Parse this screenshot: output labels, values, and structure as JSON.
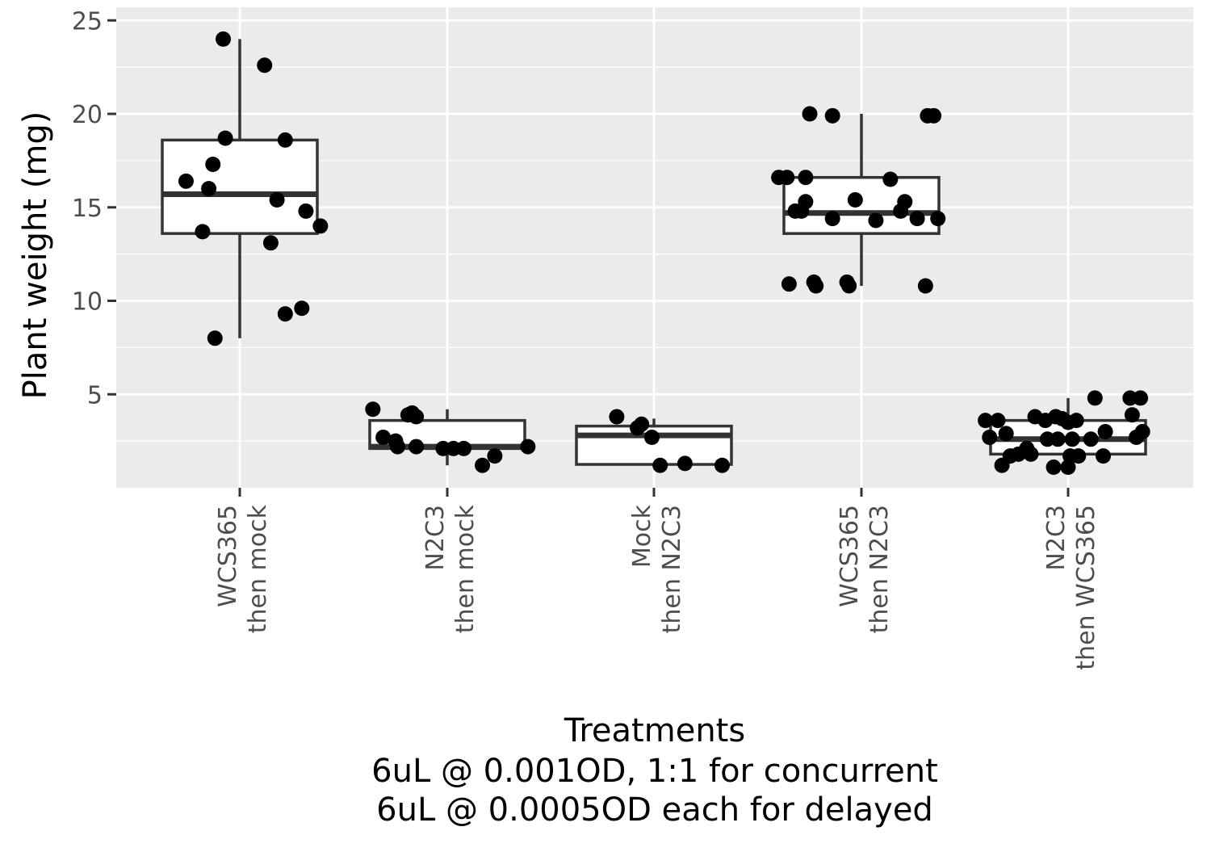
{
  "chart_data": {
    "type": "boxplot",
    "title": "",
    "xlabel_lines": [
      "Treatments",
      "6uL @ 0.001OD, 1:1 for concurrent",
      "6uL @ 0.0005OD each for delayed"
    ],
    "ylabel": "Plant weight (mg)",
    "ylim": [
      0,
      25
    ],
    "y_ticks": [
      5,
      10,
      15,
      20,
      25
    ],
    "grid": true,
    "background": "#ebebeb",
    "categories": [
      {
        "line1": "WCS365",
        "line2": "then mock"
      },
      {
        "line1": "N2C3",
        "line2": "then mock"
      },
      {
        "line1": "Mock",
        "line2": "then N2C3"
      },
      {
        "line1": "WCS365",
        "line2": "then N2C3"
      },
      {
        "line1": "N2C3",
        "line2": "then WCS365"
      }
    ],
    "boxes": [
      {
        "q1": 13.6,
        "median": 15.7,
        "q3": 18.6,
        "whisker_low": 8.0,
        "whisker_high": 24.0
      },
      {
        "q1": 2.1,
        "median": 2.2,
        "q3": 3.6,
        "whisker_low": 1.2,
        "whisker_high": 4.2
      },
      {
        "q1": 1.25,
        "median": 2.8,
        "q3": 3.3,
        "whisker_low": 1.25,
        "whisker_high": 3.7
      },
      {
        "q1": 13.6,
        "median": 14.7,
        "q3": 16.6,
        "whisker_low": 10.8,
        "whisker_high": 20.0
      },
      {
        "q1": 1.8,
        "median": 2.6,
        "q3": 3.6,
        "whisker_low": 1.1,
        "whisker_high": 4.8
      }
    ],
    "points": [
      [
        {
          "dx": -0.08,
          "y": 24.0
        },
        {
          "dx": 0.12,
          "y": 22.6
        },
        {
          "dx": -0.07,
          "y": 18.7
        },
        {
          "dx": 0.22,
          "y": 18.6
        },
        {
          "dx": -0.13,
          "y": 17.3
        },
        {
          "dx": -0.26,
          "y": 16.4
        },
        {
          "dx": -0.15,
          "y": 16.0
        },
        {
          "dx": 0.18,
          "y": 15.4
        },
        {
          "dx": 0.32,
          "y": 14.8
        },
        {
          "dx": 0.39,
          "y": 14.0
        },
        {
          "dx": -0.18,
          "y": 13.7
        },
        {
          "dx": 0.15,
          "y": 13.1
        },
        {
          "dx": 0.3,
          "y": 9.6
        },
        {
          "dx": 0.22,
          "y": 9.3
        },
        {
          "dx": -0.12,
          "y": 8.0
        }
      ],
      [
        {
          "dx": -0.36,
          "y": 4.2
        },
        {
          "dx": -0.19,
          "y": 3.9
        },
        {
          "dx": -0.17,
          "y": 4.0
        },
        {
          "dx": -0.15,
          "y": 3.8
        },
        {
          "dx": -0.31,
          "y": 2.7
        },
        {
          "dx": -0.25,
          "y": 2.5
        },
        {
          "dx": -0.24,
          "y": 2.2
        },
        {
          "dx": -0.15,
          "y": 2.2
        },
        {
          "dx": -0.02,
          "y": 2.1
        },
        {
          "dx": 0.03,
          "y": 2.1
        },
        {
          "dx": 0.08,
          "y": 2.1
        },
        {
          "dx": 0.39,
          "y": 2.2
        },
        {
          "dx": 0.23,
          "y": 1.7
        },
        {
          "dx": 0.17,
          "y": 1.2
        }
      ],
      [
        {
          "dx": -0.18,
          "y": 3.8
        },
        {
          "dx": -0.06,
          "y": 3.4
        },
        {
          "dx": -0.08,
          "y": 3.2
        },
        {
          "dx": -0.01,
          "y": 2.7
        },
        {
          "dx": 0.03,
          "y": 1.2
        },
        {
          "dx": 0.15,
          "y": 1.3
        },
        {
          "dx": 0.33,
          "y": 1.2
        }
      ],
      [
        {
          "dx": -0.25,
          "y": 20.0
        },
        {
          "dx": -0.14,
          "y": 19.9
        },
        {
          "dx": 0.32,
          "y": 19.9
        },
        {
          "dx": 0.35,
          "y": 19.9
        },
        {
          "dx": -0.4,
          "y": 16.6
        },
        {
          "dx": -0.36,
          "y": 16.6
        },
        {
          "dx": -0.27,
          "y": 16.6
        },
        {
          "dx": 0.14,
          "y": 16.5
        },
        {
          "dx": -0.27,
          "y": 15.3
        },
        {
          "dx": -0.03,
          "y": 15.4
        },
        {
          "dx": 0.21,
          "y": 15.3
        },
        {
          "dx": -0.32,
          "y": 14.8
        },
        {
          "dx": -0.29,
          "y": 14.8
        },
        {
          "dx": 0.19,
          "y": 14.8
        },
        {
          "dx": -0.14,
          "y": 14.4
        },
        {
          "dx": 0.07,
          "y": 14.3
        },
        {
          "dx": 0.27,
          "y": 14.4
        },
        {
          "dx": 0.37,
          "y": 14.4
        },
        {
          "dx": -0.35,
          "y": 10.9
        },
        {
          "dx": -0.23,
          "y": 11.0
        },
        {
          "dx": -0.22,
          "y": 10.8
        },
        {
          "dx": -0.07,
          "y": 11.0
        },
        {
          "dx": -0.06,
          "y": 10.8
        },
        {
          "dx": 0.31,
          "y": 10.8
        }
      ],
      [
        {
          "dx": 0.13,
          "y": 4.8
        },
        {
          "dx": 0.3,
          "y": 4.8
        },
        {
          "dx": 0.35,
          "y": 4.8
        },
        {
          "dx": 0.31,
          "y": 3.9
        },
        {
          "dx": -0.16,
          "y": 3.8
        },
        {
          "dx": -0.06,
          "y": 3.8
        },
        {
          "dx": -0.03,
          "y": 3.7
        },
        {
          "dx": 0.0,
          "y": 3.5
        },
        {
          "dx": 0.04,
          "y": 3.6
        },
        {
          "dx": -0.4,
          "y": 3.6
        },
        {
          "dx": -0.34,
          "y": 3.6
        },
        {
          "dx": -0.3,
          "y": 2.9
        },
        {
          "dx": -0.11,
          "y": 3.6
        },
        {
          "dx": 0.18,
          "y": 3.0
        },
        {
          "dx": 0.36,
          "y": 3.0
        },
        {
          "dx": -0.38,
          "y": 2.7
        },
        {
          "dx": -0.1,
          "y": 2.6
        },
        {
          "dx": -0.05,
          "y": 2.6
        },
        {
          "dx": 0.02,
          "y": 2.6
        },
        {
          "dx": 0.11,
          "y": 2.6
        },
        {
          "dx": 0.33,
          "y": 2.7
        },
        {
          "dx": -0.2,
          "y": 2.1
        },
        {
          "dx": -0.28,
          "y": 1.7
        },
        {
          "dx": -0.24,
          "y": 1.8
        },
        {
          "dx": -0.18,
          "y": 1.8
        },
        {
          "dx": 0.01,
          "y": 1.7
        },
        {
          "dx": 0.05,
          "y": 1.7
        },
        {
          "dx": 0.17,
          "y": 1.7
        },
        {
          "dx": -0.32,
          "y": 1.2
        },
        {
          "dx": -0.07,
          "y": 1.1
        },
        {
          "dx": 0.0,
          "y": 1.1
        }
      ]
    ]
  }
}
